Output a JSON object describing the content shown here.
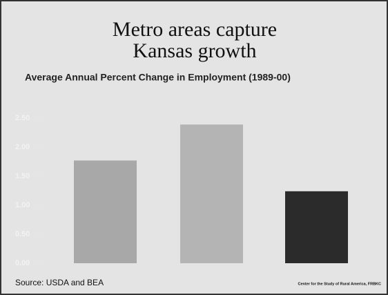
{
  "chart_data": {
    "type": "bar",
    "title": [
      "Metro areas capture",
      "Kansas growth"
    ],
    "subtitle": "Average Annual Percent Change in Employment (1989-00)",
    "values": [
      1.77,
      2.39,
      1.24
    ],
    "colors": [
      "#a8a8a8",
      "#b4b4b4",
      "#2b2b2b"
    ],
    "ylim": [
      0,
      2.5
    ],
    "yticks": [
      {
        "value": 0,
        "label": "0.00"
      },
      {
        "value": 0.5,
        "label": "0.50"
      },
      {
        "value": 1,
        "label": "1.00"
      },
      {
        "value": 1.5,
        "label": "1.50"
      },
      {
        "value": 2,
        "label": "2.00"
      },
      {
        "value": 2.5,
        "label": "2.50"
      }
    ],
    "source": "Source:  USDA and BEA",
    "credit": "Center for the Study of Rural America, FRBKC"
  }
}
